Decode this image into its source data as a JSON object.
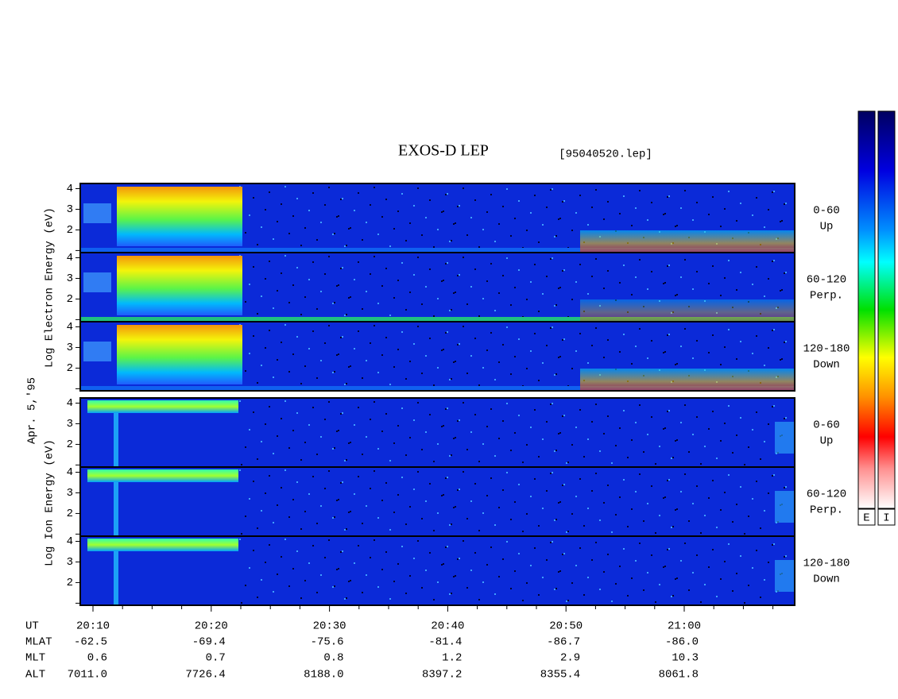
{
  "title": "EXOS-D LEP",
  "file": "[95040520.lep]",
  "axis_labels": {
    "electron": "Log Electron Energy (eV)",
    "date": "Apr. 5,'95",
    "ion": "Log Ion Energy (eV)"
  },
  "panels": [
    {
      "species": "electron",
      "ylim": [
        0.9,
        4.25
      ],
      "yticks": [
        2,
        3,
        4
      ],
      "pitch": "0-60",
      "direction": "Up"
    },
    {
      "species": "electron",
      "ylim": [
        0.9,
        4.25
      ],
      "yticks": [
        2,
        3,
        4
      ],
      "pitch": "60-120",
      "direction": "Perp."
    },
    {
      "species": "electron",
      "ylim": [
        0.9,
        4.25
      ],
      "yticks": [
        2,
        3,
        4
      ],
      "pitch": "120-180",
      "direction": "Down"
    },
    {
      "species": "ion",
      "ylim": [
        0.9,
        4.25
      ],
      "yticks": [
        2,
        3,
        4
      ],
      "pitch": "0-60",
      "direction": "Up"
    },
    {
      "species": "ion",
      "ylim": [
        0.9,
        4.25
      ],
      "yticks": [
        2,
        3,
        4
      ],
      "pitch": "60-120",
      "direction": "Perp."
    },
    {
      "species": "ion",
      "ylim": [
        0.9,
        4.25
      ],
      "yticks": [
        2,
        3,
        4
      ],
      "pitch": "120-180",
      "direction": "Down"
    }
  ],
  "colorbar": {
    "labels": [
      "E",
      "I"
    ]
  },
  "orbit": {
    "rows": [
      "UT",
      "MLAT",
      "MLT",
      "ALT"
    ],
    "columns": [
      [
        "20:10",
        "-62.5",
        "0.6",
        "7011.0"
      ],
      [
        "20:20",
        "-69.4",
        "0.7",
        "7726.4"
      ],
      [
        "20:30",
        "-75.6",
        "0.8",
        "8188.0"
      ],
      [
        "20:40",
        "-81.4",
        "1.2",
        "8397.2"
      ],
      [
        "20:50",
        "-86.7",
        "2.9",
        "8355.4"
      ],
      [
        "21:00",
        "-86.0",
        "10.3",
        "8061.8"
      ]
    ]
  }
}
